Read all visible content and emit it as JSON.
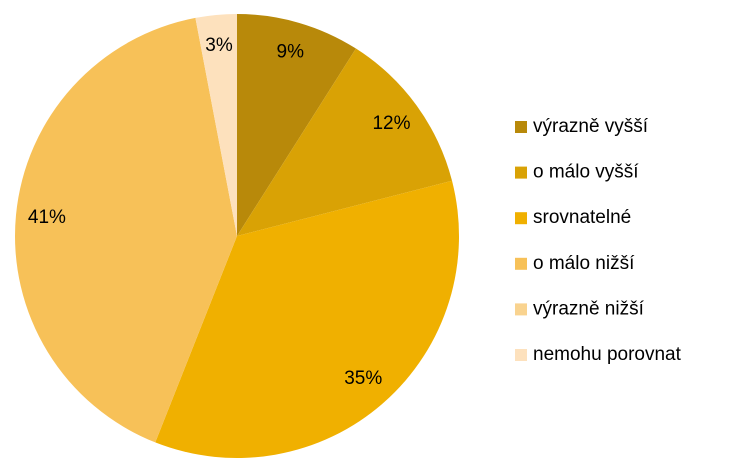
{
  "chart_data": {
    "type": "pie",
    "categories": [
      "výrazně vyšší",
      "o málo vyšší",
      "srovnatelné",
      "o málo nižší",
      "výrazně nižší",
      "nemohu porovnat"
    ],
    "values": [
      9,
      12,
      35,
      41,
      0,
      3
    ],
    "value_labels": [
      "9%",
      "12%",
      "35%",
      "41%",
      null,
      "3%"
    ],
    "colors": [
      "#b8890a",
      "#d9a205",
      "#f0b000",
      "#f7c158",
      "#f9d38f",
      "#fde1bd"
    ],
    "legend": "right"
  }
}
